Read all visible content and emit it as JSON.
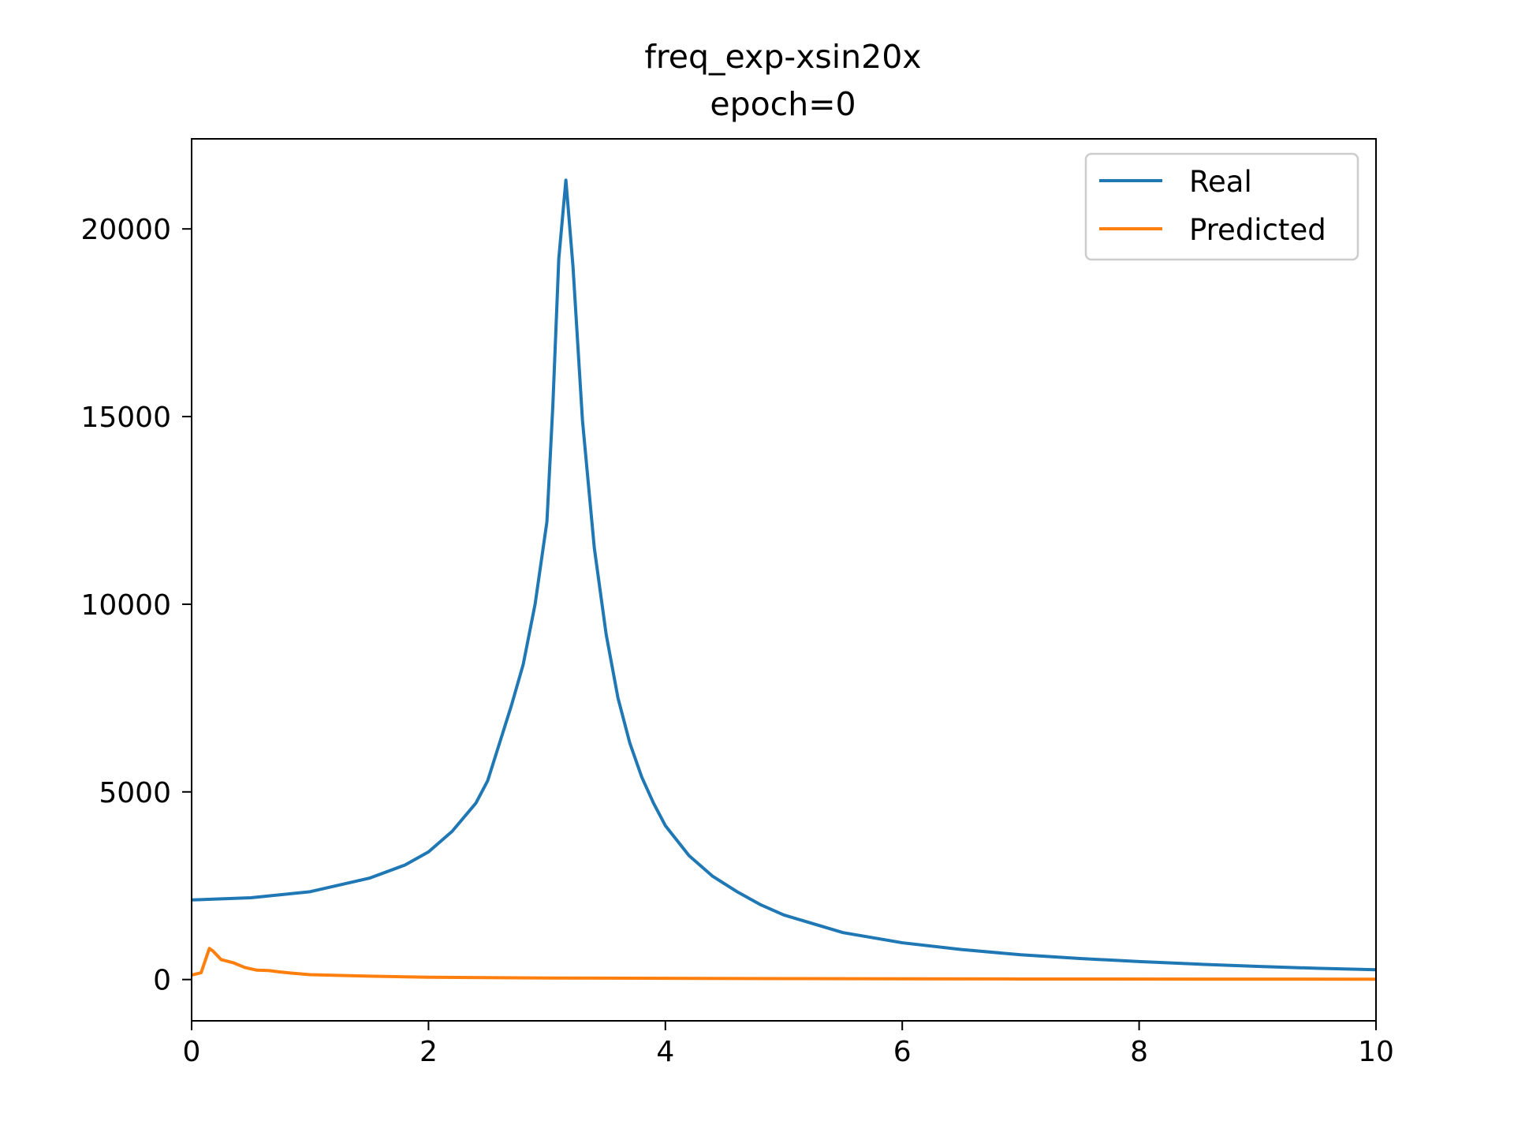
{
  "chart_data": {
    "type": "line",
    "title": "freq_exp-xsin20x",
    "subtitle": "epoch=0",
    "xlim": [
      0,
      10
    ],
    "ylim": [
      -1100,
      22400
    ],
    "x_ticks": [
      0,
      2,
      4,
      6,
      8,
      10
    ],
    "y_ticks": [
      0,
      5000,
      10000,
      15000,
      20000
    ],
    "grid": false,
    "legend": {
      "placement": "top-right",
      "entries": [
        "Real",
        "Predicted"
      ]
    },
    "series": [
      {
        "name": "Real",
        "color": "#1f77b4",
        "points": [
          [
            0,
            2120
          ],
          [
            0.5,
            2180
          ],
          [
            1.0,
            2340
          ],
          [
            1.5,
            2700
          ],
          [
            1.8,
            3050
          ],
          [
            2.0,
            3400
          ],
          [
            2.2,
            3950
          ],
          [
            2.4,
            4700
          ],
          [
            2.5,
            5300
          ],
          [
            2.6,
            6300
          ],
          [
            2.7,
            7300
          ],
          [
            2.8,
            8400
          ],
          [
            2.9,
            10000
          ],
          [
            3.0,
            12200
          ],
          [
            3.05,
            15300
          ],
          [
            3.1,
            19200
          ],
          [
            3.16,
            21300
          ],
          [
            3.22,
            19000
          ],
          [
            3.3,
            14900
          ],
          [
            3.4,
            11500
          ],
          [
            3.5,
            9200
          ],
          [
            3.6,
            7500
          ],
          [
            3.7,
            6300
          ],
          [
            3.8,
            5400
          ],
          [
            3.9,
            4700
          ],
          [
            4.0,
            4100
          ],
          [
            4.2,
            3300
          ],
          [
            4.4,
            2750
          ],
          [
            4.6,
            2350
          ],
          [
            4.8,
            2000
          ],
          [
            5.0,
            1720
          ],
          [
            5.5,
            1250
          ],
          [
            6.0,
            980
          ],
          [
            6.5,
            800
          ],
          [
            7.0,
            660
          ],
          [
            7.5,
            560
          ],
          [
            8.0,
            480
          ],
          [
            8.5,
            410
          ],
          [
            9.0,
            350
          ],
          [
            9.5,
            300
          ],
          [
            10.0,
            260
          ]
        ]
      },
      {
        "name": "Predicted",
        "color": "#ff7f0e",
        "points": [
          [
            0,
            120
          ],
          [
            0.08,
            180
          ],
          [
            0.15,
            830
          ],
          [
            0.18,
            760
          ],
          [
            0.25,
            530
          ],
          [
            0.35,
            450
          ],
          [
            0.45,
            320
          ],
          [
            0.55,
            250
          ],
          [
            0.65,
            240
          ],
          [
            0.75,
            200
          ],
          [
            0.85,
            170
          ],
          [
            1.0,
            130
          ],
          [
            1.5,
            90
          ],
          [
            2.0,
            60
          ],
          [
            3.0,
            40
          ],
          [
            5.0,
            25
          ],
          [
            7.0,
            15
          ],
          [
            10.0,
            10
          ]
        ]
      }
    ]
  }
}
